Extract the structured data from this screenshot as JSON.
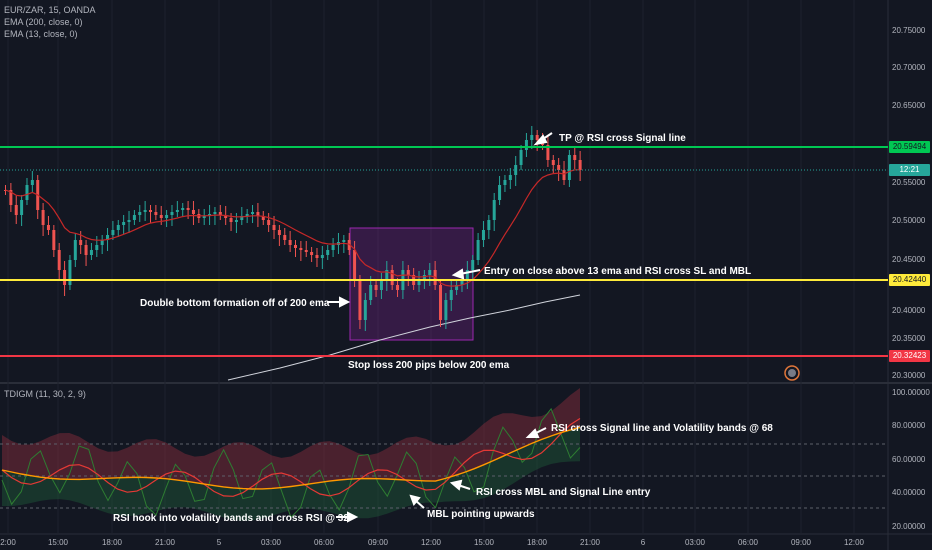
{
  "legend": {
    "symbol": "EUR/ZAR, 15, OANDA",
    "ema200": "EMA (200, close, 0)",
    "ema13": "EMA (13, close, 0)",
    "indicator": "TDIGM (11, 30, 2, 9)"
  },
  "price_axis": {
    "labels": [
      "20.75000",
      "20.70000",
      "20.65000",
      "20.55000",
      "20.50000",
      "20.45000",
      "20.40000",
      "20.35000",
      "20.30000"
    ],
    "tp_tag": "20.59494",
    "time_tag": "12:21",
    "entry_tag": "20.42440",
    "sl_tag": "20.32423"
  },
  "indicator_axis": {
    "labels": [
      "100.00000",
      "80.00000",
      "60.00000",
      "40.00000",
      "20.00000"
    ]
  },
  "time_axis": {
    "labels": [
      "2:00",
      "15:00",
      "18:00",
      "21:00",
      "5",
      "03:00",
      "06:00",
      "09:00",
      "12:00",
      "15:00",
      "18:00",
      "21:00",
      "6",
      "03:00",
      "06:00",
      "09:00",
      "12:00"
    ]
  },
  "annotations": {
    "tp": "TP @ RSI cross Signal line",
    "entry": "Entry on close above 13 ema and RSI cross SL and  MBL",
    "double_bottom": "Double bottom formation off of 200 ema",
    "stop_loss": "Stop loss 200 pips below 200 ema",
    "rsi_signal_vol": "RSI cross Signal line and Volatility bands @ 68",
    "rsi_mbl": "RSI cross MBL and Signal Line entry",
    "rsi_hook": "RSI hook into volatility bands and cross RSI @ 32",
    "mbl_up": "MBL pointing upwards"
  },
  "colors": {
    "background": "#131722",
    "tp_line": "#00c853",
    "entry_line": "#ffeb3b",
    "sl_line": "#f23645",
    "bull": "#26a69a",
    "bear": "#ef5350",
    "ema200": "#d1d4dc",
    "ema13": "#f23645",
    "rectangle": "#9c27b0"
  }
}
